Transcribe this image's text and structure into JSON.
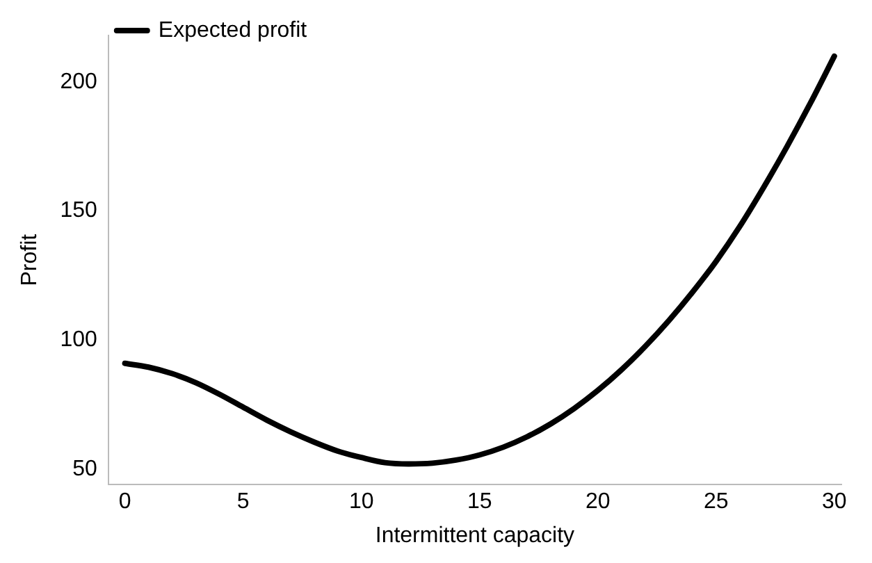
{
  "chart_data": {
    "type": "line",
    "xlabel": "Intermittent capacity",
    "ylabel": "Profit",
    "x": [
      0,
      1,
      2,
      3,
      4,
      5,
      6,
      7,
      8,
      9,
      10,
      11,
      12,
      13,
      14,
      15,
      16,
      17,
      18,
      19,
      20,
      21,
      22,
      23,
      24,
      25,
      26,
      27,
      28,
      29,
      30
    ],
    "series": [
      {
        "name": "Expected profit",
        "color": "#000000",
        "values": [
          91,
          89.5,
          87,
          83.5,
          79,
          74,
          69,
          64.5,
          60.5,
          57,
          54.5,
          52.5,
          52,
          52.3,
          53.5,
          55.5,
          58.5,
          62.5,
          67.5,
          73.5,
          80.5,
          88.5,
          97.5,
          107.5,
          118.5,
          130.5,
          144,
          159,
          175,
          192,
          210
        ]
      }
    ],
    "xlim": [
      -0.7,
      30.3
    ],
    "xticks": [
      0,
      5,
      10,
      15,
      20,
      25,
      30
    ],
    "ylim": [
      44,
      218
    ],
    "yticks": [
      50,
      100,
      150,
      200
    ],
    "grid": false,
    "legend": "top",
    "marker": "none",
    "line_style": "solid"
  }
}
